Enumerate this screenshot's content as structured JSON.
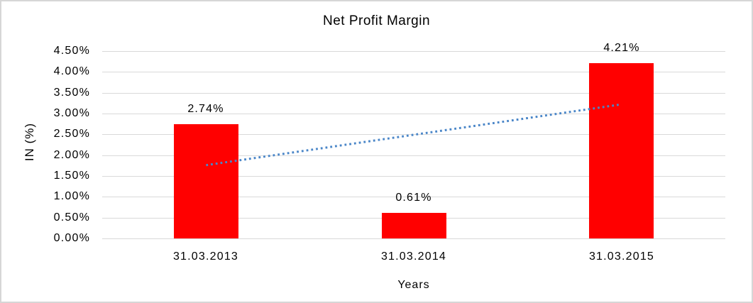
{
  "window": {
    "background": "#ffffff",
    "frame_border_color": "#d6d6d6"
  },
  "chart_data": {
    "type": "bar",
    "title": "Net Profit Margin",
    "xlabel": "Years",
    "ylabel": "IN (%)",
    "categories": [
      "31.03.2013",
      "31.03.2014",
      "31.03.2015"
    ],
    "values": [
      2.74,
      0.61,
      4.21
    ],
    "data_labels": [
      "2.74%",
      "0.61%",
      "4.21%"
    ],
    "y_ticks": [
      "0.00%",
      "0.50%",
      "1.00%",
      "1.50%",
      "2.00%",
      "2.50%",
      "3.00%",
      "3.50%",
      "4.00%",
      "4.50%"
    ],
    "ylim": [
      0,
      4.5
    ],
    "y_tick_step": 0.5,
    "grid": true,
    "gridline_color": "#d9d9d9",
    "bar_color": "#ff0000",
    "legend": "none",
    "trendline": {
      "style": "dotted",
      "color": "#4a86c8",
      "start": {
        "category_index": 0,
        "value": 1.76
      },
      "end": {
        "category_index": 2,
        "value": 3.22
      }
    }
  }
}
